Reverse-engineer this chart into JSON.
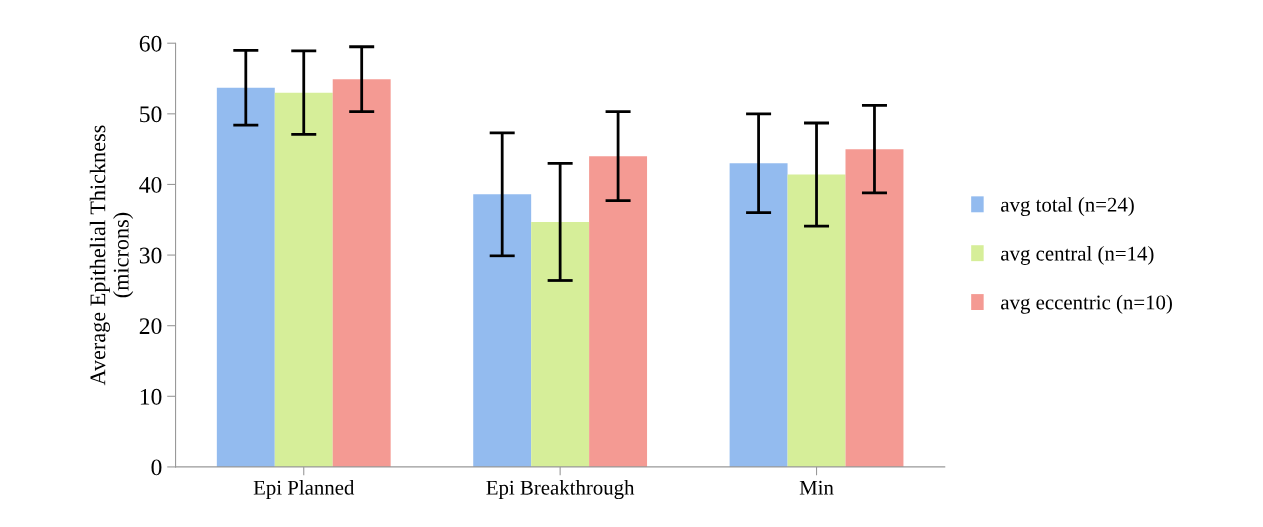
{
  "chart_data": {
    "type": "bar",
    "ylabel": "Average Epithelial Thickness\n(microns)",
    "categories": [
      "Epi Planned",
      "Epi Breakthrough",
      "Min"
    ],
    "series": [
      {
        "name": "avg total (n=24)",
        "color": "#93bbef",
        "values": [
          53.7,
          38.6,
          43.0
        ],
        "errors": [
          5.3,
          8.7,
          7.0
        ]
      },
      {
        "name": "avg central (n=14)",
        "color": "#d6ee99",
        "values": [
          53.0,
          34.7,
          41.4
        ],
        "errors": [
          5.9,
          8.3,
          7.3
        ]
      },
      {
        "name": "avg eccentric (n=10)",
        "color": "#f49a93",
        "values": [
          54.9,
          44.0,
          45.0
        ],
        "errors": [
          4.6,
          6.3,
          6.2
        ]
      }
    ],
    "ylim": [
      0,
      60
    ],
    "yticks": [
      0,
      10,
      20,
      30,
      40,
      50,
      60
    ],
    "grid": false,
    "legend": "right"
  }
}
